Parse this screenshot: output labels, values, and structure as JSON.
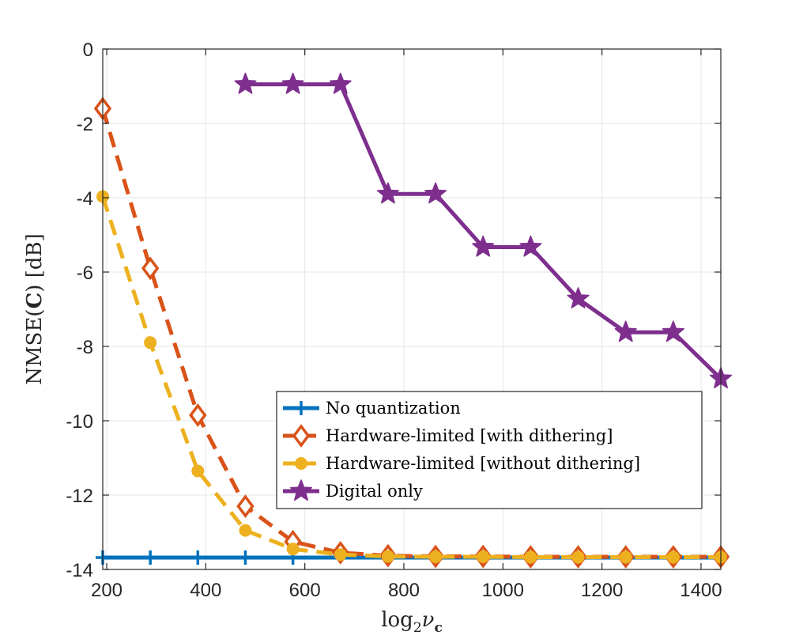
{
  "chart_data": {
    "type": "line",
    "xlabel": "log₂νᴄ",
    "ylabel": "NMSE(C) [dB]",
    "xlim": [
      192,
      1440
    ],
    "ylim": [
      -14,
      0
    ],
    "xticks": [
      200,
      400,
      600,
      800,
      1000,
      1200,
      1400
    ],
    "xtick_labels": [
      "200",
      "400",
      "600",
      "800",
      "1000",
      "1200",
      "1400"
    ],
    "yticks": [
      0,
      -2,
      -4,
      -6,
      -8,
      -10,
      -12,
      -14
    ],
    "ytick_labels": [
      "0",
      "-2",
      "-4",
      "-6",
      "-8",
      "-10",
      "-12",
      "-14"
    ],
    "grid": true,
    "legend_position": "bottom-right",
    "series": [
      {
        "name": "No quantization",
        "color": "#0072BD",
        "line": "solid",
        "marker": "plus",
        "x": [
          192,
          288,
          384,
          480,
          576
        ],
        "y": [
          -13.68,
          -13.68,
          -13.68,
          -13.68,
          -13.68
        ],
        "line_x": [
          192,
          1440
        ],
        "line_y": [
          -13.68,
          -13.68
        ]
      },
      {
        "name": "Hardware-limited [with dithering]",
        "color": "#D95319",
        "line": "dashed",
        "marker": "diamond",
        "x": [
          192,
          288,
          384,
          480,
          576,
          672,
          768,
          864,
          960,
          1056,
          1152,
          1248,
          1344,
          1440
        ],
        "y": [
          -1.6,
          -5.9,
          -9.85,
          -12.3,
          -13.25,
          -13.55,
          -13.63,
          -13.65,
          -13.65,
          -13.66,
          -13.66,
          -13.66,
          -13.66,
          -13.66
        ]
      },
      {
        "name": "Hardware-limited [without dithering]",
        "color": "#EDB120",
        "line": "dashed",
        "marker": "circle",
        "x": [
          192,
          288,
          384,
          480,
          576,
          672,
          768,
          864,
          960,
          1056,
          1152,
          1248,
          1344,
          1440
        ],
        "y": [
          -3.97,
          -7.9,
          -11.35,
          -12.95,
          -13.45,
          -13.6,
          -13.65,
          -13.66,
          -13.66,
          -13.67,
          -13.67,
          -13.67,
          -13.67,
          -13.67
        ]
      },
      {
        "name": "Digital only",
        "color": "#7E2F8E",
        "line": "solid",
        "marker": "star",
        "x": [
          480,
          576,
          672,
          768,
          864,
          960,
          1056,
          1152,
          1248,
          1344,
          1440
        ],
        "y": [
          -0.95,
          -0.95,
          -0.95,
          -3.9,
          -3.9,
          -5.33,
          -5.33,
          -6.72,
          -7.62,
          -7.62,
          -8.87
        ]
      }
    ]
  }
}
